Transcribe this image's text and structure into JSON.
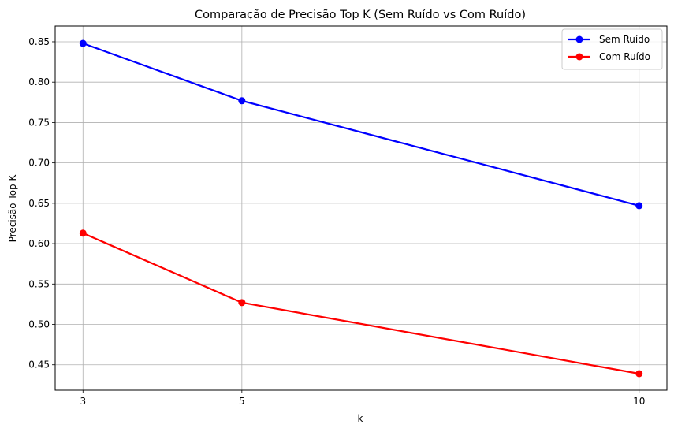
{
  "chart_data": {
    "type": "line",
    "title": "Comparação de Precisão Top K (Sem Ruído vs Com Ruído)",
    "xlabel": "k",
    "ylabel": "Precisão Top K",
    "x": [
      3,
      5,
      10
    ],
    "x_ticks": [
      "3",
      "5",
      "10"
    ],
    "xlim": [
      2.65,
      10.35
    ],
    "ylim": [
      0.4185,
      0.8695
    ],
    "y_ticks": [
      "0.45",
      "0.50",
      "0.55",
      "0.60",
      "0.65",
      "0.70",
      "0.75",
      "0.80",
      "0.85"
    ],
    "y_tick_values": [
      0.45,
      0.5,
      0.55,
      0.6,
      0.65,
      0.7,
      0.75,
      0.8,
      0.85
    ],
    "grid": true,
    "legend_position": "top-right",
    "series": [
      {
        "name": "Sem Ruído",
        "color": "#0000ff",
        "marker": "circle",
        "values": [
          0.848,
          0.777,
          0.647
        ]
      },
      {
        "name": "Com Ruído",
        "color": "#ff0000",
        "marker": "circle",
        "values": [
          0.613,
          0.527,
          0.439
        ]
      }
    ]
  }
}
